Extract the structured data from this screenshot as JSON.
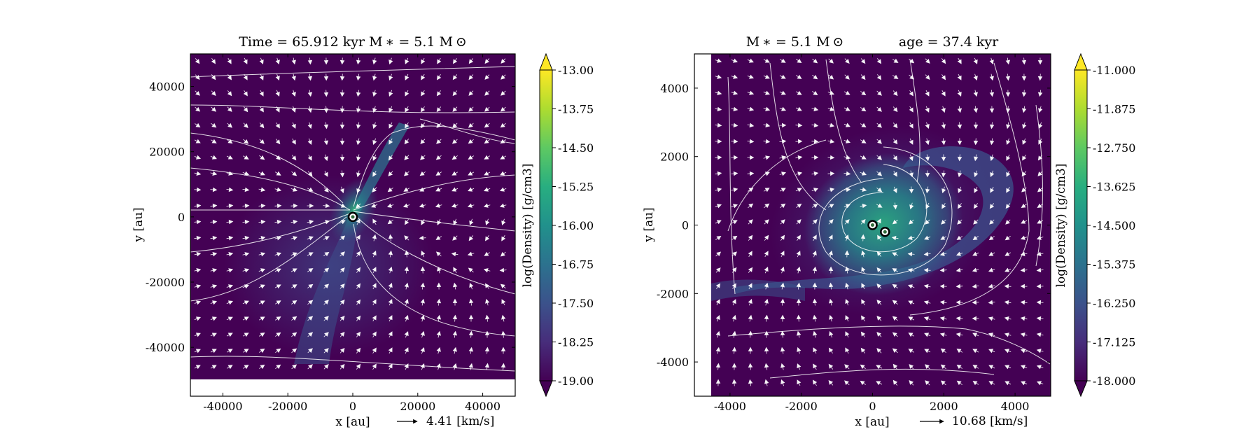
{
  "chart_data": [
    {
      "type": "heatmap",
      "title": "Time = 65.912 kyr    M ∗ = 5.1 M ⊙",
      "xlabel": "x [au]",
      "ylabel": "y [au]",
      "xlim": [
        -50000,
        50000
      ],
      "ylim": [
        -55000,
        50000
      ],
      "xticks": [
        -40000,
        -20000,
        0,
        20000,
        40000
      ],
      "xtick_labels": [
        "-40000",
        "-20000",
        "0",
        "20000",
        "40000"
      ],
      "yticks": [
        40000,
        20000,
        0,
        -20000,
        -40000
      ],
      "ytick_labels": [
        "40000",
        "20000",
        "0",
        "-20000",
        "-40000"
      ],
      "colorbar": {
        "label": "log(Density) [g/cm3]",
        "min": -19.0,
        "max": -13.0,
        "ticks": [
          -13.0,
          -13.75,
          -14.5,
          -15.25,
          -16.0,
          -16.75,
          -17.5,
          -18.25,
          -19.0
        ],
        "tick_labels": [
          "-13.00",
          "-13.75",
          "-14.50",
          "-15.25",
          "-16.00",
          "-16.75",
          "-17.50",
          "-18.25",
          "-19.00"
        ],
        "extend": "both"
      },
      "velocity_key": {
        "label": "4.41 [km/s]"
      },
      "stars": [
        {
          "x": 0,
          "y": 0
        }
      ],
      "colors": {
        "background": "#440154",
        "vectors": "#ffffff"
      }
    },
    {
      "type": "heatmap",
      "title": "M ∗ = 5.1 M ⊙             age = 37.4 kyr",
      "xlabel": "x [au]",
      "ylabel": "y [au]",
      "xlim": [
        -5000,
        5000
      ],
      "ylim": [
        -5000,
        5000
      ],
      "xticks": [
        -4000,
        -2000,
        0,
        2000,
        4000
      ],
      "xtick_labels": [
        "-4000",
        "-2000",
        "0",
        "2000",
        "4000"
      ],
      "yticks": [
        4000,
        2000,
        0,
        -2000,
        -4000
      ],
      "ytick_labels": [
        "4000",
        "2000",
        "0",
        "-2000",
        "-4000"
      ],
      "colorbar": {
        "label": "log(Density) [g/cm3]",
        "min": -18.0,
        "max": -11.0,
        "ticks": [
          -11.0,
          -11.875,
          -12.75,
          -13.625,
          -14.5,
          -15.375,
          -16.25,
          -17.125,
          -18.0
        ],
        "tick_labels": [
          "-11.000",
          "-11.875",
          "-12.750",
          "-13.625",
          "-14.500",
          "-15.375",
          "-16.250",
          "-17.125",
          "-18.000"
        ],
        "extend": "both"
      },
      "velocity_key": {
        "label": "10.68 [km/s]"
      },
      "stars": [
        {
          "x": 0,
          "y": 0
        },
        {
          "x": 350,
          "y": -200
        }
      ],
      "colors": {
        "background": "#440154",
        "vectors": "#ffffff"
      }
    }
  ]
}
